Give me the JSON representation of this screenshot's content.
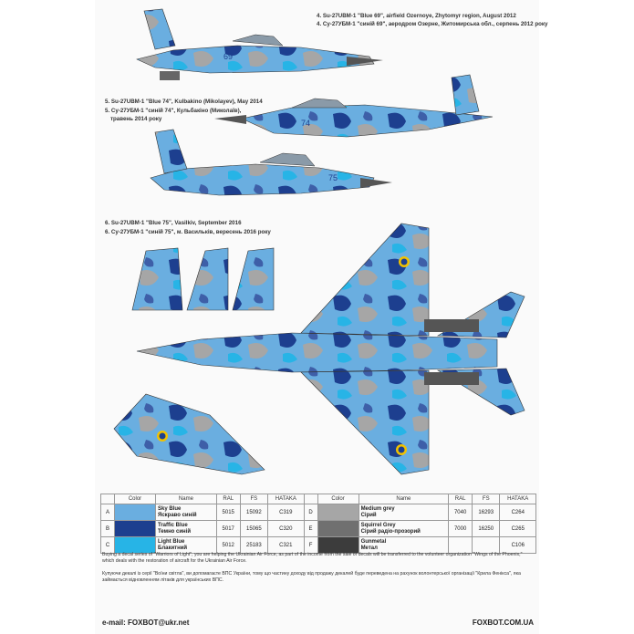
{
  "captions": {
    "c4_en": "4. Su-27UBM-1 \"Blue 69\", airfield Ozernoye, Zhytomyr region, August 2012",
    "c4_ua": "4. Су-27УБМ-1 \"синій 69\", аеродром Озерне, Житомирська обл., серпень 2012 року",
    "c5_en": "5. Su-27UBM-1 \"Blue 74\", Kulbakino (Mikolayev), May 2014",
    "c5_ua": "5. Су-27УБМ-1 \"синій 74\", Кульбакіно (Миколаїв),",
    "c5_ua2": "травень 2014 року",
    "c6_en": "6. Su-27UBM-1 \"Blue 75\", Vasilkiv, September 2016",
    "c6_ua": "6. Су-27УБМ-1 \"синій 75\", м. Васильків, вересень 2016 року"
  },
  "aircraft_numbers": {
    "a4": "69",
    "a5": "74",
    "a6": "75"
  },
  "table": {
    "headers": [
      "Color",
      "Name",
      "RAL",
      "FS",
      "HATAKA"
    ],
    "left": [
      {
        "letter": "A",
        "swatch": "#6aaee0",
        "name_en": "Sky Blue",
        "name_ua": "Яскраво синій",
        "ral": "5015",
        "fs": "15092",
        "hataka": "C319"
      },
      {
        "letter": "B",
        "swatch": "#1d3f8f",
        "name_en": "Traffic Blue",
        "name_ua": "Темно синій",
        "ral": "5017",
        "fs": "15065",
        "hataka": "C320"
      },
      {
        "letter": "C",
        "swatch": "#27b4e6",
        "name_en": "Light Blue",
        "name_ua": "Блакитний",
        "ral": "5012",
        "fs": "25183",
        "hataka": "C321"
      }
    ],
    "right": [
      {
        "letter": "D",
        "swatch": "#a6a6a6",
        "name_en": "Medium grey",
        "name_ua": "Сірий",
        "ral": "7040",
        "fs": "16293",
        "hataka": "C264"
      },
      {
        "letter": "E",
        "swatch": "#707070",
        "name_en": "Squirrel Grey",
        "name_ua": "Сірий радіо-прозорий",
        "ral": "7000",
        "fs": "16250",
        "hataka": "C265"
      },
      {
        "letter": "F",
        "swatch": "#3c3c3c",
        "name_en": "Gunmetal",
        "name_ua": "Метал",
        "ral": "",
        "fs": "",
        "hataka": "C106"
      }
    ]
  },
  "footer": {
    "en": "Buying a decal series of \"Warriors of Light\", you are helping the Ukrainian Air Force, as part of the income from the sale of decals will be transferred to the volunteer organization \"Wings of the Phoenix,\" which deals with the restoration of aircraft for the Ukrainian Air Force.",
    "ua": "Купуючи декалі із серії \"Воїни світла\", ви допомагаєте ВПС України, тому що частину доходу від продажу декалей буде переведена на рахунок волонтерської організації \"Крила Фенікса\", яка займається відновленням літаків для українських ВПС.",
    "email": "e-mail: FOXBOT@ukr.net",
    "site": "FOXBOT.COM.UA"
  },
  "colors": {
    "sky": "#6aaee0",
    "traffic": "#1d3f8f",
    "light": "#27b4e6",
    "grey": "#a6a6a6"
  }
}
